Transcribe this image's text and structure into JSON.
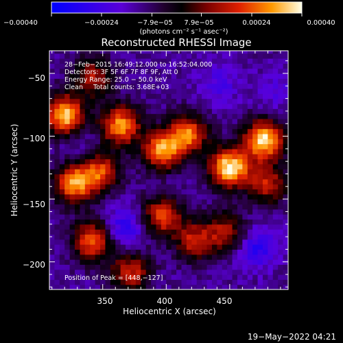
{
  "chart_data": {
    "type": "heatmap",
    "title": "Reconstructed RHESSI Image",
    "xlabel": "Heliocentric X (arcsec)",
    "ylabel": "Heliocentric Y (arcsec)",
    "xlim": [
      308,
      496
    ],
    "ylim": [
      -222,
      -32
    ],
    "x_ticks": [
      350,
      400,
      450
    ],
    "y_ticks": [
      -50,
      -100,
      -150,
      -200
    ],
    "x_tick_labels": [
      "350",
      "400",
      "450"
    ],
    "y_tick_labels": [
      "−50",
      "−100",
      "−150",
      "−200"
    ],
    "colorbar": {
      "range": [
        -0.0004,
        0.0004
      ],
      "tick_labels": [
        "−0.00040",
        "−0.00024",
        "−7.9e−05",
        "7.9e−05",
        "0.00024",
        "0.00040"
      ],
      "units": "(photons cm⁻² s⁻¹ asec⁻²)"
    },
    "annotations": [
      "28−Feb−2015 16:49:12.000 to 16:52:04.000",
      "Detectors: 3F 5F 6F 7F 8F 9F, Att 0",
      "Energy Range: 25.0 − 50.0 keV",
      "Clean     Total counts: 3.68E+03",
      "Position of Peak = [448,−127]"
    ],
    "peak_position": [
      448,
      -127
    ],
    "total_counts": 3680,
    "energy_range_kev": [
      25.0,
      50.0
    ],
    "bright_sources": [
      {
        "x": 318,
        "y": -85,
        "intensity": 0.00036
      },
      {
        "x": 362,
        "y": -93,
        "intensity": 0.0003
      },
      {
        "x": 395,
        "y": -113,
        "intensity": 0.0003
      },
      {
        "x": 415,
        "y": -100,
        "intensity": 0.00026
      },
      {
        "x": 448,
        "y": -127,
        "intensity": 0.0004
      },
      {
        "x": 475,
        "y": -105,
        "intensity": 0.00038
      },
      {
        "x": 325,
        "y": -140,
        "intensity": 0.00028
      },
      {
        "x": 345,
        "y": -130,
        "intensity": 0.00022
      },
      {
        "x": 340,
        "y": -185,
        "intensity": 0.00026
      },
      {
        "x": 395,
        "y": -165,
        "intensity": 0.00022
      },
      {
        "x": 370,
        "y": -210,
        "intensity": 0.00018
      },
      {
        "x": 445,
        "y": -178,
        "intensity": 0.00014
      },
      {
        "x": 340,
        "y": -55,
        "intensity": 0.00014
      },
      {
        "x": 420,
        "y": -185,
        "intensity": 0.00016
      },
      {
        "x": 478,
        "y": -140,
        "intensity": 0.00016
      }
    ],
    "dark_regions": [
      {
        "x": 365,
        "y": -175,
        "intensity": -0.0003
      },
      {
        "x": 470,
        "y": -190,
        "intensity": -0.0003
      },
      {
        "x": 440,
        "y": -60,
        "intensity": -0.00022
      },
      {
        "x": 400,
        "y": -140,
        "intensity": -0.00014
      },
      {
        "x": 330,
        "y": -110,
        "intensity": -0.00018
      },
      {
        "x": 485,
        "y": -65,
        "intensity": -0.0002
      }
    ]
  },
  "footer": {
    "date": "19−May−2022 04:21"
  }
}
